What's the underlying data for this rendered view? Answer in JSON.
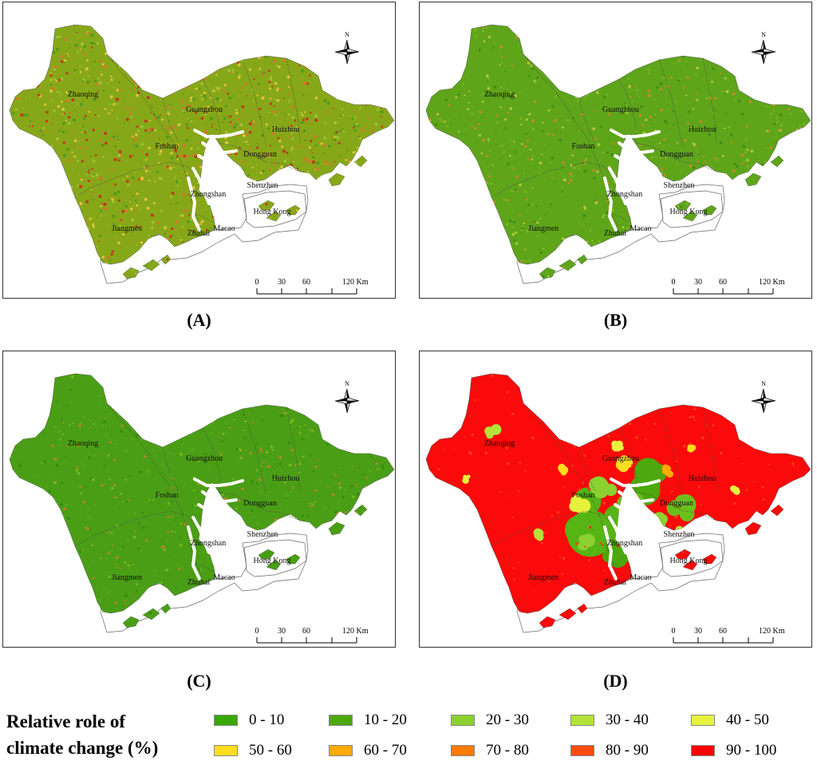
{
  "panels": [
    {
      "id": "A",
      "label": "(A)",
      "theme": "mixed"
    },
    {
      "id": "B",
      "label": "(B)",
      "theme": "greenish"
    },
    {
      "id": "C",
      "label": "(C)",
      "theme": "green"
    },
    {
      "id": "D",
      "label": "(D)",
      "theme": "red"
    }
  ],
  "cities": [
    "Zhaoqing",
    "Guangzhou",
    "Huizhou",
    "Foshan",
    "Dongguan",
    "Shenzhen",
    "Zhongshan",
    "Jiangmen",
    "Zhuhai",
    "Macao",
    "Hong Kong"
  ],
  "north_label": "N",
  "scale_ticks": [
    "0",
    "30",
    "60",
    "120 Km"
  ],
  "legend": {
    "title_line1": "Relative role of",
    "title_line2": "climate change (%)",
    "items": [
      {
        "label": "0 - 10",
        "color": "#38a800"
      },
      {
        "label": "10 - 20",
        "color": "#4ca80c"
      },
      {
        "label": "20 - 30",
        "color": "#8bd130"
      },
      {
        "label": "30 - 40",
        "color": "#b4e23a"
      },
      {
        "label": "40 - 50",
        "color": "#e6f23c"
      },
      {
        "label": "50 - 60",
        "color": "#ffdd1f"
      },
      {
        "label": "60 - 70",
        "color": "#ffaa00"
      },
      {
        "label": "70 - 80",
        "color": "#ff7a00"
      },
      {
        "label": "80 - 90",
        "color": "#ff4a10"
      },
      {
        "label": "90 - 100",
        "color": "#ff0000"
      }
    ]
  }
}
